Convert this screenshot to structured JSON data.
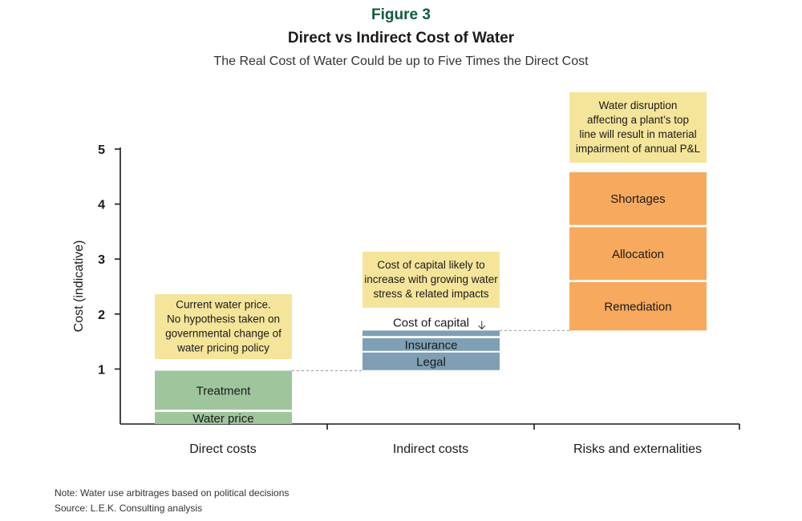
{
  "figure": {
    "label": "Figure 3",
    "title": "Direct vs Indirect Cost of Water",
    "subtitle": "The Real Cost of Water Could be up to Five Times the Direct Cost"
  },
  "notes": {
    "note": "Note: Water use arbitrages based on political decisions",
    "source": "Source: L.E.K. Consulting analysis"
  },
  "colors": {
    "direct": "#9fc59c",
    "indirect": "#7f9fb5",
    "risks": "#f7a95e",
    "callout": "#f5e59a",
    "axis": "#1a1a1a",
    "connector": "#999999"
  },
  "chart_data": {
    "type": "bar",
    "ylabel": "Cost (indicative)",
    "ylim": [
      0,
      5
    ],
    "yticks": [
      1,
      2,
      3,
      4,
      5
    ],
    "categories": [
      "Direct costs",
      "Indirect costs",
      "Risks and externalities"
    ],
    "segments": [
      {
        "category": "Direct costs",
        "label": "Water price",
        "start": 0.0,
        "end": 0.22,
        "color": "#9fc59c"
      },
      {
        "category": "Direct costs",
        "label": "Treatment",
        "start": 0.26,
        "end": 0.97,
        "color": "#9fc59c"
      },
      {
        "category": "Indirect costs",
        "label": "Legal",
        "start": 0.98,
        "end": 1.3,
        "color": "#7f9fb5"
      },
      {
        "category": "Indirect costs",
        "label": "Insurance",
        "start": 1.33,
        "end": 1.56,
        "color": "#7f9fb5"
      },
      {
        "category": "Indirect costs",
        "label": "Cost of capital",
        "start": 1.6,
        "end": 1.7,
        "color": "#7f9fb5",
        "label_above": true
      },
      {
        "category": "Risks and externalities",
        "label": "Remediation",
        "start": 1.7,
        "end": 2.58,
        "color": "#f7a95e"
      },
      {
        "category": "Risks and externalities",
        "label": "Allocation",
        "start": 2.62,
        "end": 3.58,
        "color": "#f7a95e"
      },
      {
        "category": "Risks and externalities",
        "label": "Shortages",
        "start": 3.62,
        "end": 4.58,
        "color": "#f7a95e"
      }
    ],
    "connectors": [
      {
        "from": "Direct costs",
        "to": "Indirect costs",
        "value": 0.97
      },
      {
        "from": "Indirect costs",
        "to": "Risks and externalities",
        "value": 1.7
      }
    ],
    "callouts": [
      {
        "category": "Direct costs",
        "lines": [
          "Current water price.",
          "No hypothesis taken on",
          "governmental change of",
          "water pricing policy"
        ]
      },
      {
        "category": "Indirect costs",
        "lines": [
          "Cost of capital likely to",
          "increase with growing water",
          "stress & related impacts"
        ]
      },
      {
        "category": "Risks and externalities",
        "lines": [
          "Water disruption",
          "affecting a plant’s top",
          "line will result in material",
          "impairment of annual P&L"
        ]
      }
    ]
  }
}
